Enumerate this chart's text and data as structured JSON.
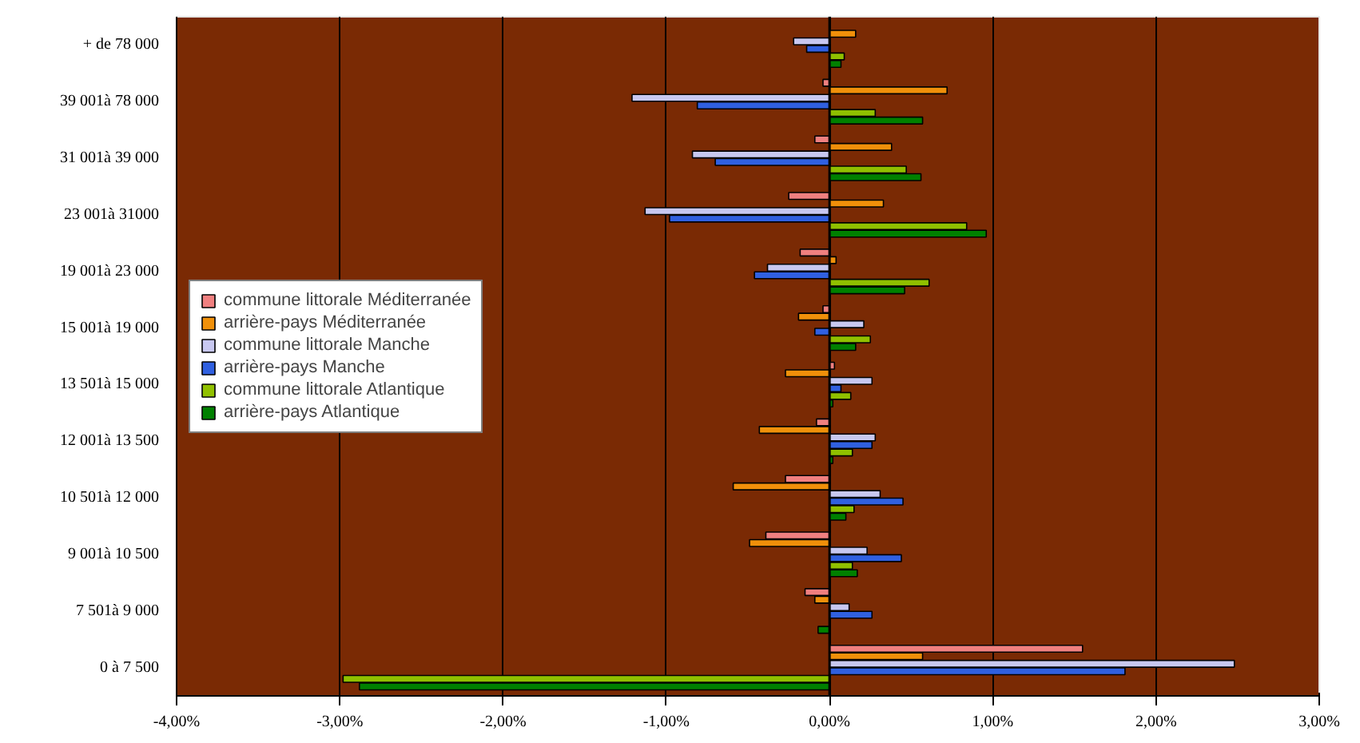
{
  "chart_data": {
    "type": "bar",
    "orientation": "horizontal",
    "categories": [
      "+ de 78 000",
      "39 001à 78 000",
      "31 001à 39 000",
      "23 001à 31000",
      "19 001à 23 000",
      "15 001à 19 000",
      "13 501à 15 000",
      "12 001à 13 500",
      "10 501à 12 000",
      "9 001à 10 500",
      "7 501à 9 000",
      "0 à 7 500"
    ],
    "series": [
      {
        "name": "commune littorale Méditerranée",
        "color": "#f08080",
        "values": [
          null,
          -0.04,
          -0.09,
          -0.25,
          -0.18,
          -0.04,
          0.03,
          -0.08,
          -0.27,
          -0.39,
          -0.15,
          1.55
        ]
      },
      {
        "name": "arrière-pays Méditerranée",
        "color": "#f0900a",
        "values": [
          0.16,
          0.72,
          0.38,
          0.33,
          0.04,
          -0.19,
          -0.27,
          -0.43,
          -0.59,
          -0.49,
          -0.09,
          0.57
        ]
      },
      {
        "name": "commune littorale Manche",
        "color": "#c8c8f0",
        "values": [
          -0.22,
          -1.21,
          -0.84,
          -1.13,
          -0.38,
          0.21,
          0.26,
          0.28,
          0.31,
          0.23,
          0.12,
          2.48
        ]
      },
      {
        "name": "arrière-pays Manche",
        "color": "#3060e0",
        "values": [
          -0.14,
          -0.81,
          -0.7,
          -0.98,
          -0.46,
          -0.09,
          0.07,
          0.26,
          0.45,
          0.44,
          0.26,
          1.81
        ]
      },
      {
        "name": "commune littorale Atlantique",
        "color": "#90c000",
        "values": [
          0.09,
          0.28,
          0.47,
          0.84,
          0.61,
          0.25,
          0.13,
          0.14,
          0.15,
          0.14,
          null,
          -2.98
        ]
      },
      {
        "name": "arrière-pays Atlantique",
        "color": "#008000",
        "values": [
          0.07,
          0.57,
          0.56,
          0.96,
          0.46,
          0.16,
          0.02,
          0.02,
          0.1,
          0.17,
          -0.07,
          -2.88
        ]
      }
    ],
    "xlim": [
      -4,
      3
    ],
    "xticks": [
      {
        "value": -4,
        "label": "-4,00%"
      },
      {
        "value": -3,
        "label": "-3,00%"
      },
      {
        "value": -2,
        "label": "-2,00%"
      },
      {
        "value": -1,
        "label": "-1,00%"
      },
      {
        "value": 0,
        "label": "0,00%"
      },
      {
        "value": 1,
        "label": "1,00%"
      },
      {
        "value": 2,
        "label": "2,00%"
      },
      {
        "value": 3,
        "label": "3,00%"
      }
    ],
    "grid": "x",
    "legend": "left"
  }
}
